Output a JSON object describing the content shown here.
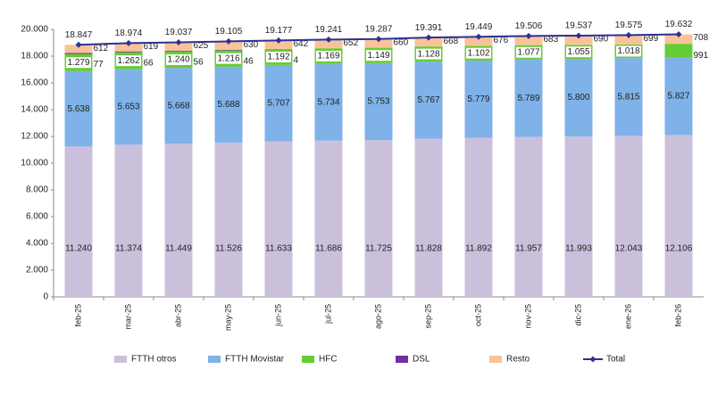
{
  "chart_data": {
    "type": "bar",
    "stacked": true,
    "categories": [
      "feb-25",
      "mar-25",
      "abr-25",
      "may-25",
      "jun-25",
      "jul-25",
      "ago-25",
      "sep-25",
      "oct-25",
      "nov-25",
      "dic-25",
      "ene-26",
      "feb-26"
    ],
    "series": [
      {
        "name": "FTTH otros",
        "color": "#cbc0dc",
        "values": [
          11240,
          11374,
          11449,
          11526,
          11633,
          11686,
          11725,
          11828,
          11892,
          11957,
          11993,
          12043,
          12106
        ],
        "value_labels": [
          "11.240",
          "11.374",
          "11.449",
          "11.526",
          "11.633",
          "11.686",
          "11.725",
          "11.828",
          "11.892",
          "11.957",
          "11.993",
          "12.043",
          "12.106"
        ]
      },
      {
        "name": "FTTH Movistar",
        "color": "#7fb2e8",
        "values": [
          5638,
          5653,
          5668,
          5688,
          5707,
          5734,
          5753,
          5767,
          5779,
          5789,
          5800,
          5815,
          5827
        ],
        "value_labels": [
          "5.638",
          "5.653",
          "5.668",
          "5.688",
          "5.707",
          "5.734",
          "5.753",
          "5.767",
          "5.779",
          "5.789",
          "5.800",
          "5.815",
          "5.827"
        ]
      },
      {
        "name": "HFC",
        "color": "#66cc33",
        "values": [
          1279,
          1262,
          1240,
          1216,
          1192,
          1169,
          1149,
          1128,
          1102,
          1077,
          1055,
          1018,
          991
        ],
        "value_labels": [
          "1.279",
          "1.262",
          "1.240",
          "1.216",
          "1.192",
          "1.169",
          "1.149",
          "1.128",
          "1.102",
          "1.077",
          "1.055",
          "1.018",
          "991"
        ]
      },
      {
        "name": "DSL",
        "color": "#7030a0",
        "values": [
          77,
          66,
          56,
          46,
          4,
          null,
          null,
          null,
          null,
          null,
          null,
          null,
          null
        ]
      },
      {
        "name": "Resto",
        "color": "#f9c39a",
        "values": [
          612,
          619,
          625,
          630,
          642,
          652,
          660,
          668,
          676,
          683,
          690,
          699,
          708
        ]
      },
      {
        "name": "Total",
        "type": "line",
        "color": "#2e3192",
        "values": [
          18847,
          18974,
          19037,
          19105,
          19177,
          19241,
          19287,
          19391,
          19449,
          19506,
          19537,
          19575,
          19632
        ],
        "value_labels": [
          "18.847",
          "18.974",
          "19.037",
          "19.105",
          "19.177",
          "19.241",
          "19.287",
          "19.391",
          "19.449",
          "19.506",
          "19.537",
          "19.575",
          "19.632"
        ]
      }
    ],
    "ylim": [
      0,
      20000
    ],
    "yticks": [
      0,
      {
        "value": 2000,
        "label": "2.000"
      },
      {
        "value": 4000,
        "label": "4.000"
      },
      {
        "value": 6000,
        "label": "6.000"
      },
      {
        "value": 8000,
        "label": "8.000"
      },
      {
        "value": 10000,
        "label": "10.000"
      },
      {
        "value": 12000,
        "label": "12.000"
      },
      {
        "value": 14000,
        "label": "14.000"
      },
      {
        "value": 16000,
        "label": "16.000"
      },
      {
        "value": 18000,
        "label": "18.000"
      },
      {
        "value": 20000,
        "label": "20.000"
      }
    ],
    "grid": false
  }
}
